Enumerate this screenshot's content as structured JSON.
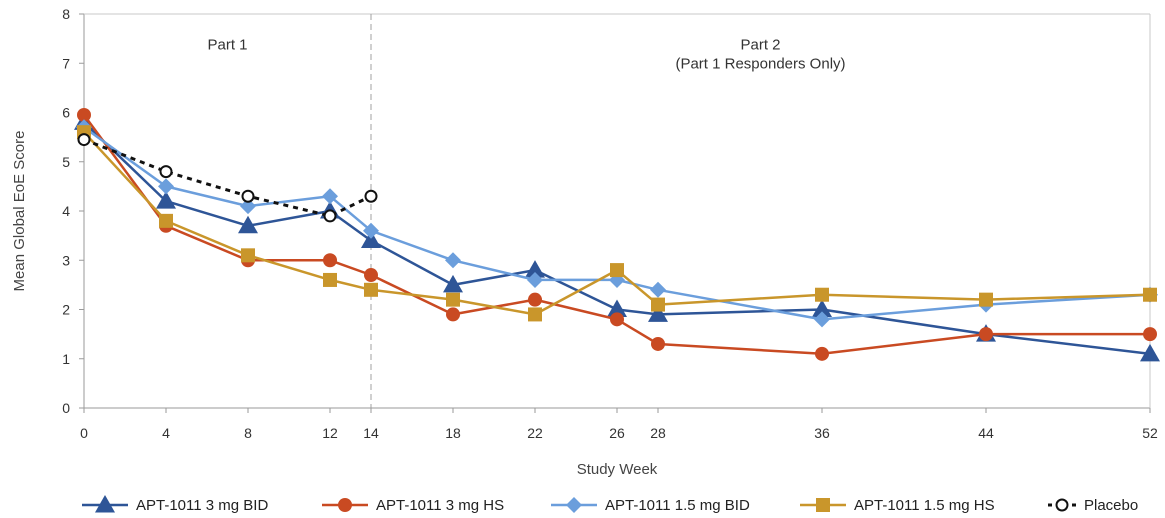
{
  "chart_data": {
    "type": "line",
    "xlabel": "Study Week",
    "ylabel": "Mean Global EoE Score",
    "xlim": [
      0,
      52
    ],
    "ylim": [
      0,
      8
    ],
    "x_ticks": [
      0,
      4,
      8,
      12,
      14,
      18,
      22,
      26,
      28,
      36,
      44,
      52
    ],
    "y_ticks": [
      0,
      1,
      2,
      3,
      4,
      5,
      6,
      7,
      8
    ],
    "divider_x": 14,
    "grid": false,
    "legend_position": "bottom",
    "annotations": [
      {
        "lines": [
          "Part 1"
        ],
        "x": 7,
        "y": 7.2
      },
      {
        "lines": [
          "Part 2",
          "(Part 1 Responders Only)"
        ],
        "x": 33,
        "y": 7.2
      }
    ],
    "series": [
      {
        "name": "APT-1011 3 mg BID",
        "color": "#2e5597",
        "marker": "triangle",
        "dashed": false,
        "x": [
          0,
          4,
          8,
          12,
          14,
          18,
          22,
          26,
          28,
          36,
          44,
          52
        ],
        "values": [
          5.8,
          4.2,
          3.7,
          4.0,
          3.4,
          2.5,
          2.8,
          2.0,
          1.9,
          2.0,
          1.5,
          1.1
        ]
      },
      {
        "name": "APT-1011 3 mg HS",
        "color": "#c94a22",
        "marker": "circle",
        "dashed": false,
        "x": [
          0,
          4,
          8,
          12,
          14,
          18,
          22,
          26,
          28,
          36,
          44,
          52
        ],
        "values": [
          5.95,
          3.7,
          3.0,
          3.0,
          2.7,
          1.9,
          2.2,
          1.8,
          1.3,
          1.1,
          1.5,
          1.5
        ]
      },
      {
        "name": "APT-1011 1.5 mg BID",
        "color": "#6b9edc",
        "marker": "diamond",
        "dashed": false,
        "x": [
          0,
          4,
          8,
          12,
          14,
          18,
          22,
          26,
          28,
          36,
          44,
          52
        ],
        "values": [
          5.7,
          4.5,
          4.1,
          4.3,
          3.6,
          3.0,
          2.6,
          2.6,
          2.4,
          1.8,
          2.1,
          2.3
        ]
      },
      {
        "name": "APT-1011 1.5 mg HS",
        "color": "#c9962b",
        "marker": "square",
        "dashed": false,
        "x": [
          0,
          4,
          8,
          12,
          14,
          18,
          22,
          26,
          28,
          36,
          44,
          52
        ],
        "values": [
          5.6,
          3.8,
          3.1,
          2.6,
          2.4,
          2.2,
          1.9,
          2.8,
          2.1,
          2.3,
          2.2,
          2.3
        ]
      },
      {
        "name": "Placebo",
        "color": "#111111",
        "marker": "open-circle",
        "dashed": true,
        "x": [
          0,
          4,
          8,
          12,
          14
        ],
        "values": [
          5.45,
          4.8,
          4.3,
          3.9,
          4.3
        ]
      }
    ]
  }
}
